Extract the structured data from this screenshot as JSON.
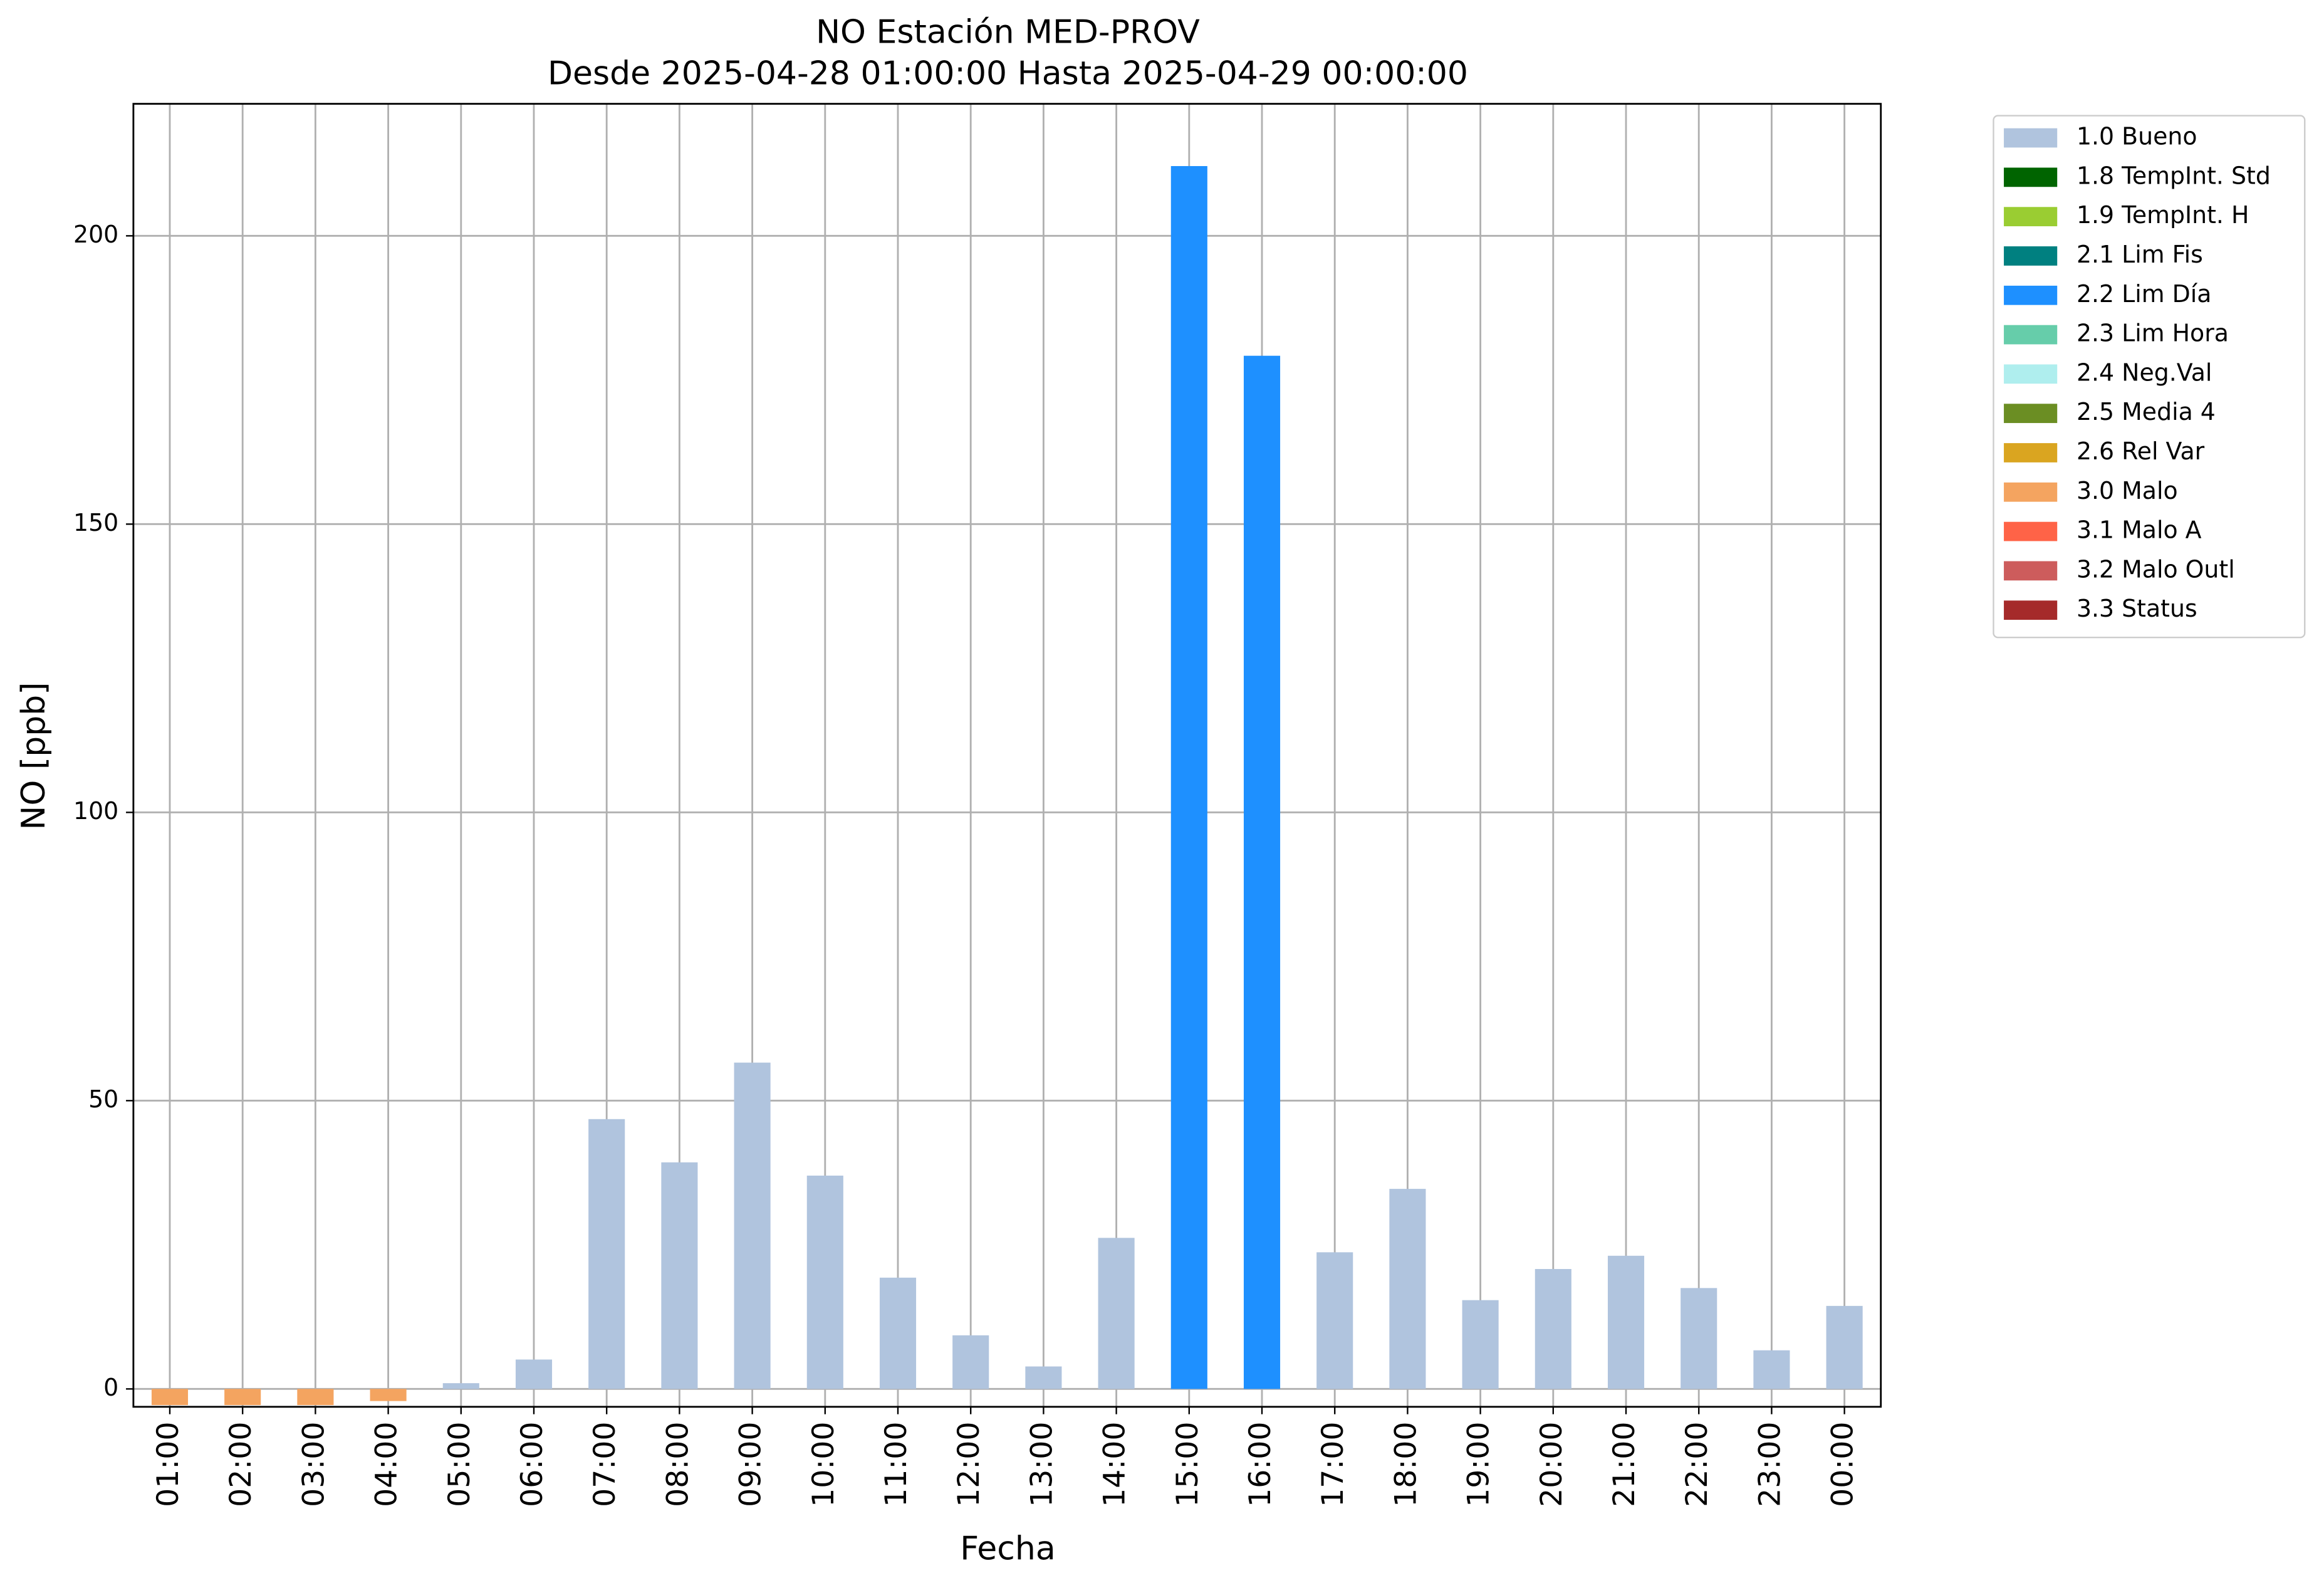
{
  "chart_data": {
    "type": "bar",
    "stacked": true,
    "title": "NO Estación MED-PROV",
    "subtitle": "Desde 2025-04-28 01:00:00 Hasta 2025-04-29 00:00:00",
    "x_label": "Fecha",
    "y_label": "NO [ppb]",
    "categories": [
      "01:00",
      "02:00",
      "03:00",
      "04:00",
      "05:00",
      "06:00",
      "07:00",
      "08:00",
      "09:00",
      "10:00",
      "11:00",
      "12:00",
      "13:00",
      "14:00",
      "15:00",
      "16:00",
      "17:00",
      "18:00",
      "19:00",
      "20:00",
      "21:00",
      "22:00",
      "23:00",
      "00:00"
    ],
    "series": [
      {
        "name": "1.0 Bueno",
        "color": "#b0c4de",
        "values": [
          null,
          null,
          null,
          null,
          1.0,
          5.1,
          46.8,
          39.3,
          56.6,
          37.0,
          19.3,
          9.3,
          3.9,
          26.2,
          null,
          null,
          23.7,
          34.7,
          15.4,
          20.8,
          23.1,
          17.5,
          6.7,
          14.4
        ]
      },
      {
        "name": "1.8 TempInt. Std",
        "color": "#006400",
        "values": [
          null,
          null,
          null,
          null,
          null,
          null,
          null,
          null,
          null,
          null,
          null,
          null,
          null,
          null,
          null,
          null,
          null,
          null,
          null,
          null,
          null,
          null,
          null,
          null
        ]
      },
      {
        "name": "1.9 TempInt. H",
        "color": "#9acd32",
        "values": [
          null,
          null,
          null,
          null,
          null,
          null,
          null,
          null,
          null,
          null,
          null,
          null,
          null,
          null,
          null,
          null,
          null,
          null,
          null,
          null,
          null,
          null,
          null,
          null
        ]
      },
      {
        "name": "2.1 Lim Fis",
        "color": "#008080",
        "values": [
          null,
          null,
          null,
          null,
          null,
          null,
          null,
          null,
          null,
          null,
          null,
          null,
          null,
          null,
          null,
          null,
          null,
          null,
          null,
          null,
          null,
          null,
          null,
          null
        ]
      },
      {
        "name": "2.2 Lim Día",
        "color": "#1e90ff",
        "values": [
          null,
          null,
          null,
          null,
          null,
          null,
          null,
          null,
          null,
          null,
          null,
          null,
          null,
          null,
          212.1,
          179.2,
          null,
          null,
          null,
          null,
          null,
          null,
          null,
          null
        ]
      },
      {
        "name": "2.3 Lim Hora",
        "color": "#66cdaa",
        "values": [
          null,
          null,
          null,
          null,
          null,
          null,
          null,
          null,
          null,
          null,
          null,
          null,
          null,
          null,
          null,
          null,
          null,
          null,
          null,
          null,
          null,
          null,
          null,
          null
        ]
      },
      {
        "name": "2.4 Neg.Val",
        "color": "#afeeee",
        "values": [
          null,
          null,
          null,
          null,
          null,
          null,
          null,
          null,
          null,
          null,
          null,
          null,
          null,
          null,
          null,
          null,
          null,
          null,
          null,
          null,
          null,
          null,
          null,
          null
        ]
      },
      {
        "name": "2.5 Media 4",
        "color": "#6b8e23",
        "values": [
          null,
          null,
          null,
          null,
          null,
          null,
          null,
          null,
          null,
          null,
          null,
          null,
          null,
          null,
          null,
          null,
          null,
          null,
          null,
          null,
          null,
          null,
          null,
          null
        ]
      },
      {
        "name": "2.6 Rel Var",
        "color": "#daa520",
        "values": [
          null,
          null,
          null,
          null,
          null,
          null,
          null,
          null,
          null,
          null,
          null,
          null,
          null,
          null,
          null,
          null,
          null,
          null,
          null,
          null,
          null,
          null,
          null,
          null
        ]
      },
      {
        "name": "3.0 Malo",
        "color": "#f4a460",
        "values": [
          -2.8,
          -2.8,
          -2.8,
          -2.1,
          null,
          null,
          null,
          null,
          null,
          null,
          null,
          null,
          null,
          null,
          null,
          null,
          null,
          null,
          null,
          null,
          null,
          null,
          null,
          null
        ]
      },
      {
        "name": "3.1 Malo A",
        "color": "#ff6347",
        "values": [
          null,
          null,
          null,
          null,
          null,
          null,
          null,
          null,
          null,
          null,
          null,
          null,
          null,
          null,
          null,
          null,
          null,
          null,
          null,
          null,
          null,
          null,
          null,
          null
        ]
      },
      {
        "name": "3.2 Malo Outl",
        "color": "#cd5c5c",
        "values": [
          null,
          null,
          null,
          null,
          null,
          null,
          null,
          null,
          null,
          null,
          null,
          null,
          null,
          null,
          null,
          null,
          null,
          null,
          null,
          null,
          null,
          null,
          null,
          null
        ]
      },
      {
        "name": "3.3 Status",
        "color": "#a52a2a",
        "values": [
          null,
          null,
          null,
          null,
          null,
          null,
          null,
          null,
          null,
          null,
          null,
          null,
          null,
          null,
          null,
          null,
          null,
          null,
          null,
          null,
          null,
          null,
          null,
          null
        ]
      }
    ],
    "ylim": [
      -3.1,
      222.9
    ],
    "yticks": [
      0,
      50,
      100,
      150,
      200
    ],
    "grid": true,
    "legend": "outside-upper-right"
  }
}
